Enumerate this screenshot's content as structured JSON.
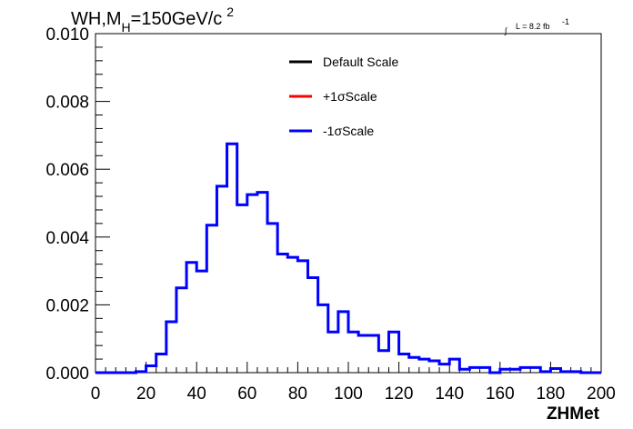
{
  "chart_data": {
    "type": "step-histogram",
    "title_parts": {
      "main": "WH,M",
      "sub": "H",
      "rest": "=150GeV/c",
      "sup": "2"
    },
    "lumi_label": {
      "integral": "∫",
      "text": "L = 8.2 fb",
      "sup": "-1"
    },
    "xlabel": "ZHMet",
    "ylabel": "",
    "xlim": [
      0,
      200
    ],
    "ylim": [
      0,
      0.01
    ],
    "x_ticks": [
      0,
      20,
      40,
      60,
      80,
      100,
      120,
      140,
      160,
      180,
      200
    ],
    "y_ticks": [
      "0.000",
      "0.002",
      "0.004",
      "0.006",
      "0.008",
      "0.010"
    ],
    "y_tick_values": [
      0,
      0.002,
      0.004,
      0.006,
      0.008,
      0.01
    ],
    "legend_position": "top-center",
    "bin_width": 4,
    "bin_edges_start": 0,
    "series": [
      {
        "name": "Default Scale",
        "color": "#000000",
        "visible_line": false
      },
      {
        "name": "+1σScale",
        "color": "#ff0000",
        "visible_line": false
      },
      {
        "name": "-1σScale",
        "color": "#0000ff",
        "visible_line": true
      }
    ],
    "values": [
      0,
      0,
      0,
      0,
      3e-05,
      0.0002,
      0.00055,
      0.0015,
      0.0025,
      0.00325,
      0.003,
      0.00435,
      0.0055,
      0.00675,
      0.00495,
      0.00525,
      0.00532,
      0.0044,
      0.0035,
      0.0034,
      0.0033,
      0.0028,
      0.002,
      0.0012,
      0.0018,
      0.0012,
      0.0011,
      0.0011,
      0.00065,
      0.0012,
      0.00055,
      0.00045,
      0.0004,
      0.00035,
      0.00025,
      0.0004,
      0.0001,
      0.00015,
      0.00015,
      0,
      0.0001,
      0.0001,
      0.00015,
      0.00015,
      3e-05,
      0.00012,
      3e-05,
      3e-05,
      0,
      0
    ]
  }
}
